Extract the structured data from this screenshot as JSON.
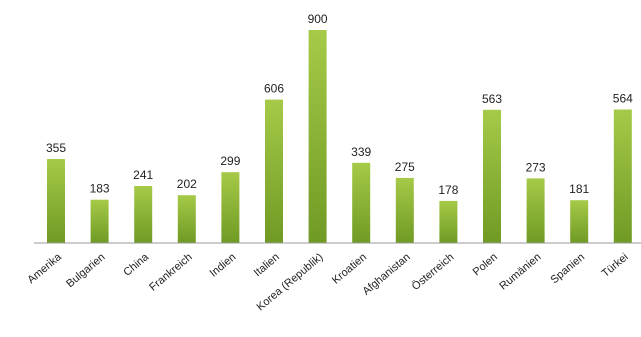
{
  "chart_data": {
    "type": "bar",
    "categories": [
      "Amerika",
      "Bulgarien",
      "China",
      "Frankreich",
      "Indien",
      "Italien",
      "Korea (Republik)",
      "Kroatien",
      "Afghanistan",
      "Österreich",
      "Polen",
      "Rumänien",
      "Spanien",
      "Türkei"
    ],
    "values": [
      355,
      183,
      241,
      202,
      299,
      606,
      900,
      339,
      275,
      178,
      563,
      273,
      181,
      564
    ],
    "value_labels": [
      "355",
      "183",
      "241",
      "202",
      "299",
      "606",
      "900",
      "339",
      "275",
      "178",
      "563",
      "273",
      "181",
      "564"
    ],
    "title": "",
    "xlabel": "",
    "ylabel": "",
    "ylim": [
      0,
      900
    ],
    "grid": false,
    "legend": "none",
    "bar_color_top": "#a6ca48",
    "bar_color_bottom": "#6f9a24",
    "axis_color": "#9a9a9a"
  }
}
